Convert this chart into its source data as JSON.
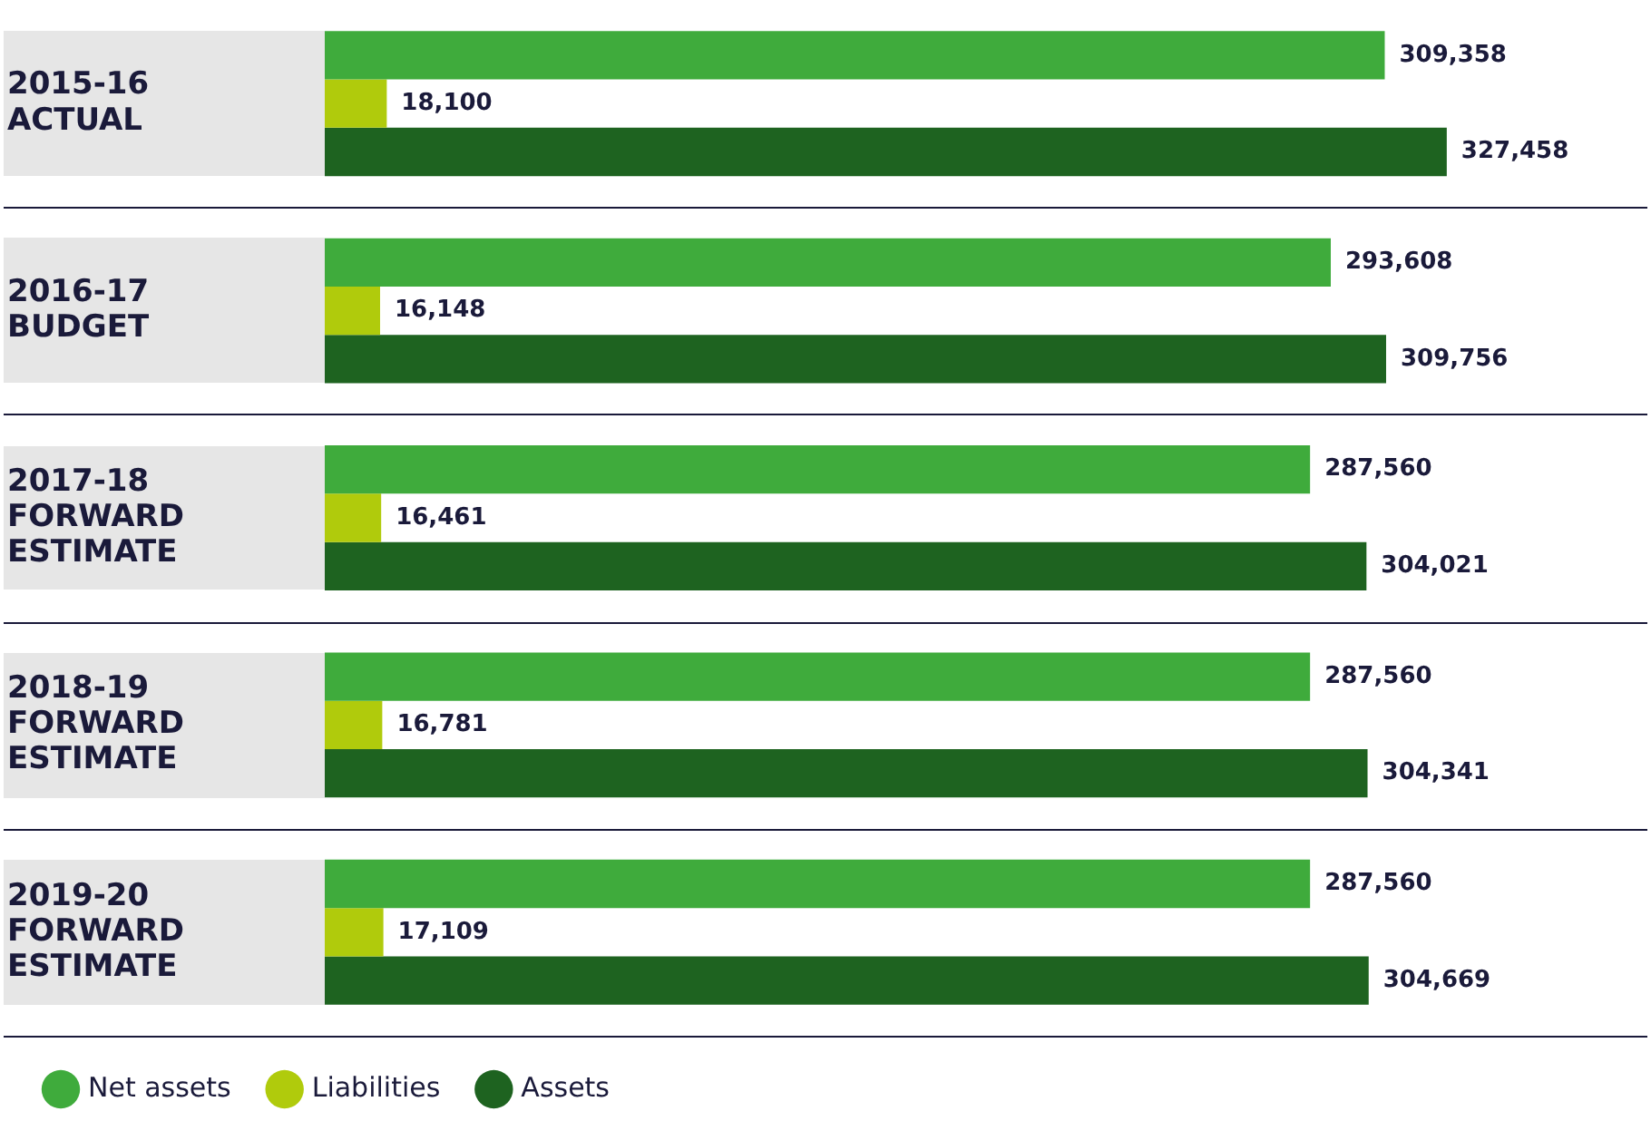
{
  "chart_data": {
    "type": "bar",
    "orientation": "horizontal",
    "categories": [
      "2015-16\nACTUAL",
      "2016-17\nBUDGET",
      "2017-18\nFORWARD\nESTIMATE",
      "2018-19\nFORWARD\nESTIMATE",
      "2019-20\nFORWARD\nESTIMATE"
    ],
    "series": [
      {
        "name": "Net assets",
        "color": "#3fab3c",
        "values": [
          309358,
          293608,
          287560,
          287560,
          287560
        ],
        "value_labels": [
          "309,358",
          "293,608",
          "287,560",
          "287,560",
          "287,560"
        ]
      },
      {
        "name": "Liabilities",
        "color": "#b0cb0c",
        "values": [
          18100,
          16148,
          16461,
          16781,
          17109
        ],
        "value_labels": [
          "18,100",
          "16,148",
          "16,461",
          "16,781",
          "17,109"
        ]
      },
      {
        "name": "Assets",
        "color": "#1e6320",
        "values": [
          327458,
          309756,
          304021,
          304341,
          304669
        ],
        "value_labels": [
          "327,458",
          "309,756",
          "304,021",
          "304,341",
          "304,669"
        ]
      }
    ],
    "legend": "bottom left",
    "tick_labels": "y"
  }
}
